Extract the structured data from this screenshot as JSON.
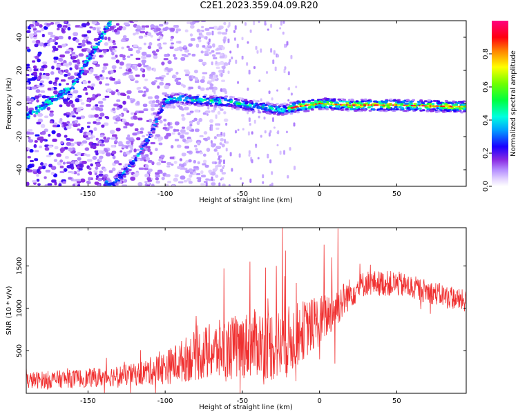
{
  "title": "C2E1.2023.359.04.09.R20",
  "chart_data": [
    {
      "type": "heatmap",
      "xlabel": "Height of straight line (km)",
      "ylabel": "Frequency (Hz)",
      "xlim": [
        -190,
        95
      ],
      "ylim": [
        -50,
        50
      ],
      "xticks": [
        -150,
        -100,
        -50,
        0,
        50
      ],
      "yticks": [
        -40,
        -20,
        0,
        20,
        40
      ],
      "colorbar": {
        "label": "Normalized spectral amplitude",
        "range": [
          0,
          1
        ],
        "ticks": [
          0.0,
          0.2,
          0.4,
          0.6,
          0.8
        ],
        "colormap": "gist_rainbow"
      },
      "ridge": [
        {
          "x": -190,
          "y": -8
        },
        {
          "x": -135,
          "y": -50
        },
        {
          "x": -120,
          "y": -35
        },
        {
          "x": -110,
          "y": -20
        },
        {
          "x": -103,
          "y": -5
        },
        {
          "x": -100,
          "y": 2
        },
        {
          "x": -90,
          "y": 3
        },
        {
          "x": -80,
          "y": 2
        },
        {
          "x": -60,
          "y": 1
        },
        {
          "x": -40,
          "y": -2
        },
        {
          "x": -25,
          "y": -4
        },
        {
          "x": -15,
          "y": -2
        },
        {
          "x": 0,
          "y": 0
        },
        {
          "x": 20,
          "y": -1
        },
        {
          "x": 50,
          "y": -1
        },
        {
          "x": 95,
          "y": -2
        }
      ],
      "ghost_ridge": [
        {
          "x": -190,
          "y": -8
        },
        {
          "x": -160,
          "y": 10
        },
        {
          "x": -135,
          "y": 50
        }
      ]
    },
    {
      "type": "line",
      "xlabel": "Height of straight line (km)",
      "ylabel": "SNR (10 * v/v)",
      "xlim": [
        -190,
        95
      ],
      "ylim": [
        0,
        1950
      ],
      "xticks": [
        -150,
        -100,
        -50,
        0,
        50
      ],
      "yticks": [
        500,
        1000,
        1500
      ],
      "series": [
        {
          "color": "#f03030",
          "envelope": [
            {
              "x": -190,
              "base": 150,
              "amp": 100
            },
            {
              "x": -150,
              "base": 180,
              "amp": 110
            },
            {
              "x": -120,
              "base": 220,
              "amp": 130
            },
            {
              "x": -100,
              "base": 300,
              "amp": 200
            },
            {
              "x": -80,
              "base": 450,
              "amp": 300
            },
            {
              "x": -60,
              "base": 520,
              "amp": 380
            },
            {
              "x": -40,
              "base": 600,
              "amp": 400
            },
            {
              "x": -25,
              "base": 550,
              "amp": 450
            },
            {
              "x": -10,
              "base": 750,
              "amp": 350
            },
            {
              "x": 0,
              "base": 850,
              "amp": 300
            },
            {
              "x": 10,
              "base": 1000,
              "amp": 250
            },
            {
              "x": 20,
              "base": 1180,
              "amp": 180
            },
            {
              "x": 30,
              "base": 1300,
              "amp": 150
            },
            {
              "x": 50,
              "base": 1290,
              "amp": 150
            },
            {
              "x": 70,
              "base": 1200,
              "amp": 140
            },
            {
              "x": 95,
              "base": 1080,
              "amp": 130
            }
          ],
          "spikes": [
            {
              "x": -24,
              "y": 1950
            },
            {
              "x": -22,
              "y": 1680
            },
            {
              "x": -35,
              "y": 1480
            },
            {
              "x": -28,
              "y": 1500
            },
            {
              "x": 12,
              "y": 1940
            },
            {
              "x": 3,
              "y": 1750
            },
            {
              "x": 8,
              "y": 1600
            },
            {
              "x": -62,
              "y": 1470
            },
            {
              "x": -45,
              "y": 1550
            },
            {
              "x": -15,
              "y": 1300
            },
            {
              "x": 0,
              "y": 400
            },
            {
              "x": 10,
              "y": 350
            }
          ]
        }
      ]
    }
  ]
}
